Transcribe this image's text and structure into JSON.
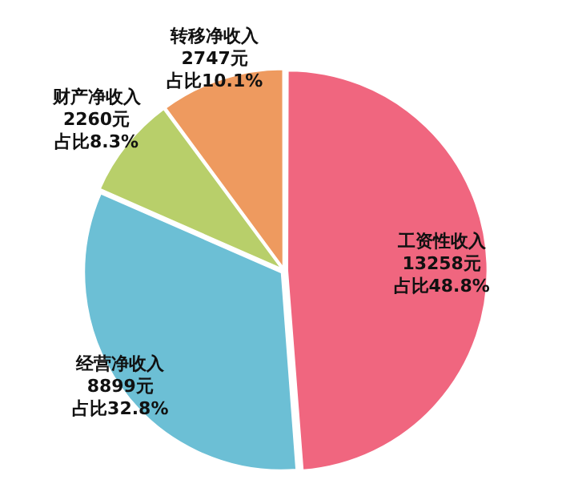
{
  "chart_data": {
    "type": "pie",
    "categories": [
      "工资性收入",
      "经营净收入",
      "财产净收入",
      "转移净收入"
    ],
    "values": [
      13258,
      8899,
      2260,
      2747
    ],
    "colors": [
      "#f0667f",
      "#6cbfd5",
      "#b8cf6a",
      "#ee9a5f"
    ],
    "value_labels": [
      "13258元",
      "8899元",
      "2260元",
      "2747元"
    ],
    "annotations": [
      "占比48.8%",
      "占比32.8%",
      "占比8.3%",
      "占比10.1%"
    ],
    "legend": false
  }
}
